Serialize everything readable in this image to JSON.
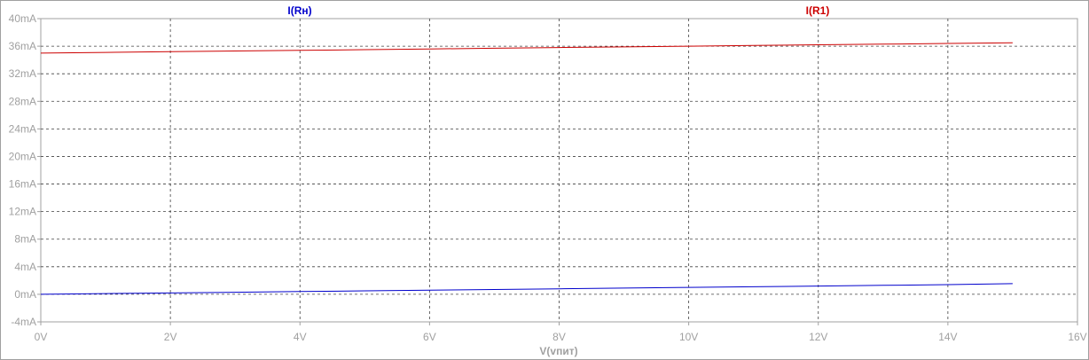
{
  "chart_data": {
    "type": "line",
    "title": "",
    "xlabel": "V(vпит)",
    "ylabel": "",
    "xlim": [
      0,
      16
    ],
    "ylim": [
      -4,
      40
    ],
    "grid": true,
    "x_ticks": [
      "0V",
      "2V",
      "4V",
      "6V",
      "8V",
      "10V",
      "12V",
      "14V",
      "16V"
    ],
    "y_ticks": [
      "-4mA",
      "0mA",
      "4mA",
      "8mA",
      "12mA",
      "16mA",
      "20mA",
      "24mA",
      "28mA",
      "32mA",
      "36mA",
      "40mA"
    ],
    "series": [
      {
        "name": "I(Rн)",
        "color": "#0000cc",
        "x": [
          0,
          1,
          2,
          3,
          4,
          5,
          6,
          7,
          8,
          9,
          10,
          11,
          12,
          13,
          14,
          15
        ],
        "y": [
          0.0,
          0.1,
          0.2,
          0.3,
          0.4,
          0.5,
          0.6,
          0.7,
          0.8,
          0.9,
          1.0,
          1.1,
          1.2,
          1.3,
          1.4,
          1.55
        ]
      },
      {
        "name": "I(R1)",
        "color": "#cc0000",
        "x": [
          0,
          1,
          2,
          3,
          4,
          5,
          6,
          7,
          8,
          9,
          10,
          11,
          12,
          13,
          14,
          15
        ],
        "y": [
          35.0,
          35.1,
          35.2,
          35.3,
          35.4,
          35.5,
          35.6,
          35.7,
          35.8,
          35.9,
          36.0,
          36.1,
          36.2,
          36.3,
          36.4,
          36.5
        ]
      }
    ]
  }
}
